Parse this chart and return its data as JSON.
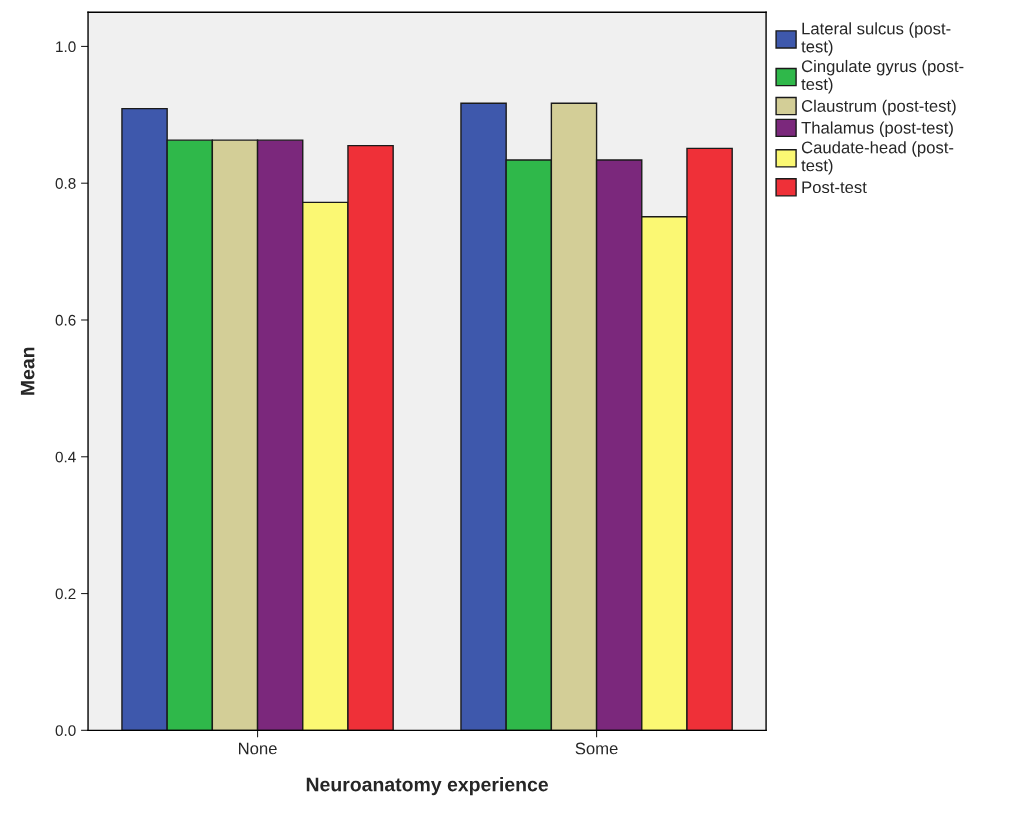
{
  "chart_data": {
    "type": "bar",
    "xlabel": "Neuroanatomy experience",
    "ylabel": "Mean",
    "categories": [
      "None",
      "Some"
    ],
    "series": [
      {
        "name": "Lateral sulcus (post-test)",
        "color": "#3e58ac",
        "values": [
          0.909,
          0.917
        ]
      },
      {
        "name": "Cingulate gyrus (post-test)",
        "color": "#2fb84a",
        "values": [
          0.863,
          0.834
        ]
      },
      {
        "name": "Claustrum (post-test)",
        "color": "#d3ce97",
        "values": [
          0.863,
          0.917
        ]
      },
      {
        "name": "Thalamus (post-test)",
        "color": "#7b287c",
        "values": [
          0.863,
          0.834
        ]
      },
      {
        "name": "Caudate-head (post-test)",
        "color": "#fbf873",
        "values": [
          0.772,
          0.751
        ]
      },
      {
        "name": "Post-test",
        "color": "#ef3038",
        "values": [
          0.855,
          0.851
        ]
      }
    ],
    "ylim": [
      0,
      1.05
    ],
    "yticks": [
      {
        "value": 0,
        "label": "0.0"
      },
      {
        "value": 0.2,
        "label": "0.2"
      },
      {
        "value": 0.4,
        "label": "0.4"
      },
      {
        "value": 0.6,
        "label": "0.6"
      },
      {
        "value": 0.8,
        "label": "0.8"
      },
      {
        "value": 1.0,
        "label": "1.0"
      }
    ],
    "legend": "right",
    "grid": false
  }
}
